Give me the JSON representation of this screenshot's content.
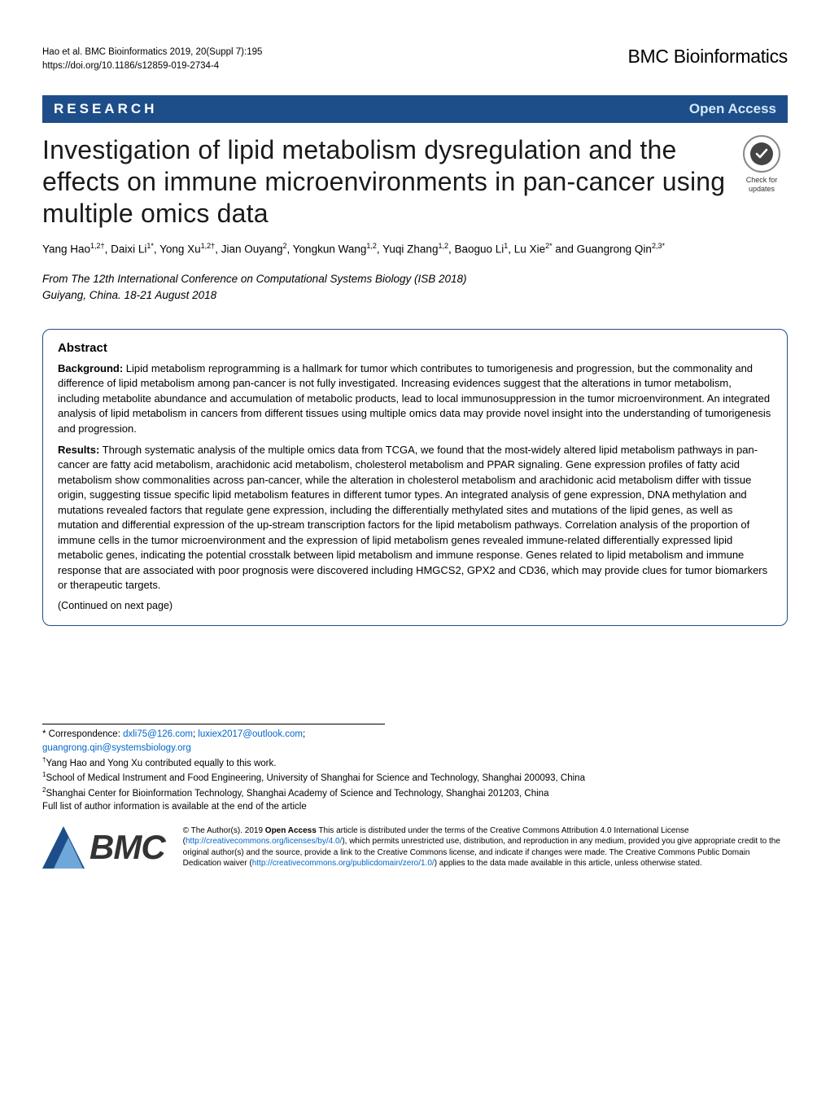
{
  "header": {
    "citation_line1": "Hao et al. BMC Bioinformatics 2019, 20(Suppl 7):195",
    "citation_line2": "https://doi.org/10.1186/s12859-019-2734-4",
    "journal": "BMC Bioinformatics"
  },
  "type_bar": {
    "article_type": "RESEARCH",
    "access": "Open Access"
  },
  "title": "Investigation of lipid metabolism dysregulation and the effects on immune microenvironments in pan-cancer using multiple omics data",
  "check_badge": {
    "line1": "Check for",
    "line2": "updates"
  },
  "authors_html": "Yang Hao<sup>1,2†</sup>, Daixi Li<sup>1*</sup>, Yong Xu<sup>1,2†</sup>, Jian Ouyang<sup>2</sup>, Yongkun Wang<sup>1,2</sup>, Yuqi Zhang<sup>1,2</sup>, Baoguo Li<sup>1</sup>, Lu Xie<sup>2*</sup> and Guangrong Qin<sup>2,3*</sup>",
  "conference": {
    "from": "From The 12th International Conference on Computational Systems Biology (ISB 2018)",
    "loc": "Guiyang, China. 18-21 August 2018"
  },
  "abstract": {
    "heading": "Abstract",
    "background_label": "Background:",
    "background": " Lipid metabolism reprogramming is a hallmark for tumor which contributes to tumorigenesis and progression, but the commonality and difference of lipid metabolism among pan-cancer is not fully investigated. Increasing evidences suggest that the alterations in tumor metabolism, including metabolite abundance and accumulation of metabolic products, lead to local immunosuppression in the tumor microenvironment. An integrated analysis of lipid metabolism in cancers from different tissues using multiple omics data may provide novel insight into the understanding of tumorigenesis and progression.",
    "results_label": "Results:",
    "results": " Through systematic analysis of the multiple omics data from TCGA, we found that the most-widely altered lipid metabolism pathways in pan-cancer are fatty acid metabolism, arachidonic acid metabolism, cholesterol metabolism and PPAR signaling. Gene expression profiles of fatty acid metabolism show commonalities across pan-cancer, while the alteration in cholesterol metabolism and arachidonic acid metabolism differ with tissue origin, suggesting tissue specific lipid metabolism features in different tumor types. An integrated analysis of gene expression, DNA methylation and mutations revealed factors that regulate gene expression, including the differentially methylated sites and mutations of the lipid genes, as well as mutation and differential expression of the up-stream transcription factors for the lipid metabolism pathways. Correlation analysis of the proportion of immune cells in the tumor microenvironment and the expression of lipid metabolism genes revealed immune-related differentially expressed lipid metabolic genes, indicating the potential crosstalk between lipid metabolism and immune response. Genes related to lipid metabolism and immune response that are associated with poor prognosis were discovered including HMGCS2, GPX2 and CD36, which may provide clues for tumor biomarkers or therapeutic targets.",
    "continued": "(Continued on next page)"
  },
  "footer": {
    "corr_label": "* Correspondence: ",
    "emails": [
      "dxli75@126.com",
      "luxiex2017@outlook.com",
      "guangrong.qin@systemsbiology.org"
    ],
    "equal": "Yang Hao and Yong Xu contributed equally to this work.",
    "aff1": "School of Medical Instrument and Food Engineering, University of Shanghai for Science and Technology, Shanghai 200093, China",
    "aff2": "Shanghai Center for Bioinformation Technology, Shanghai Academy of Science and Technology, Shanghai 201203, China",
    "full_list": "Full list of author information is available at the end of the article"
  },
  "license": {
    "prefix": "© The Author(s). 2019 ",
    "oa_label": "Open Access",
    "text1": " This article is distributed under the terms of the Creative Commons Attribution 4.0 International License (",
    "cc_url": "http://creativecommons.org/licenses/by/4.0/",
    "text2": "), which permits unrestricted use, distribution, and reproduction in any medium, provided you give appropriate credit to the original author(s) and the source, provide a link to the Creative Commons license, and indicate if changes were made. The Creative Commons Public Domain Dedication waiver (",
    "pd_url": "http://creativecommons.org/publicdomain/zero/1.0/",
    "text3": ") applies to the data made available in this article, unless otherwise stated."
  },
  "bmc_logo_text": "BMC",
  "colors": {
    "bar_bg": "#1d4e89",
    "link": "#0066cc",
    "bmc_triangle1": "#1d4e89",
    "bmc_triangle2": "#6fa8d8"
  }
}
